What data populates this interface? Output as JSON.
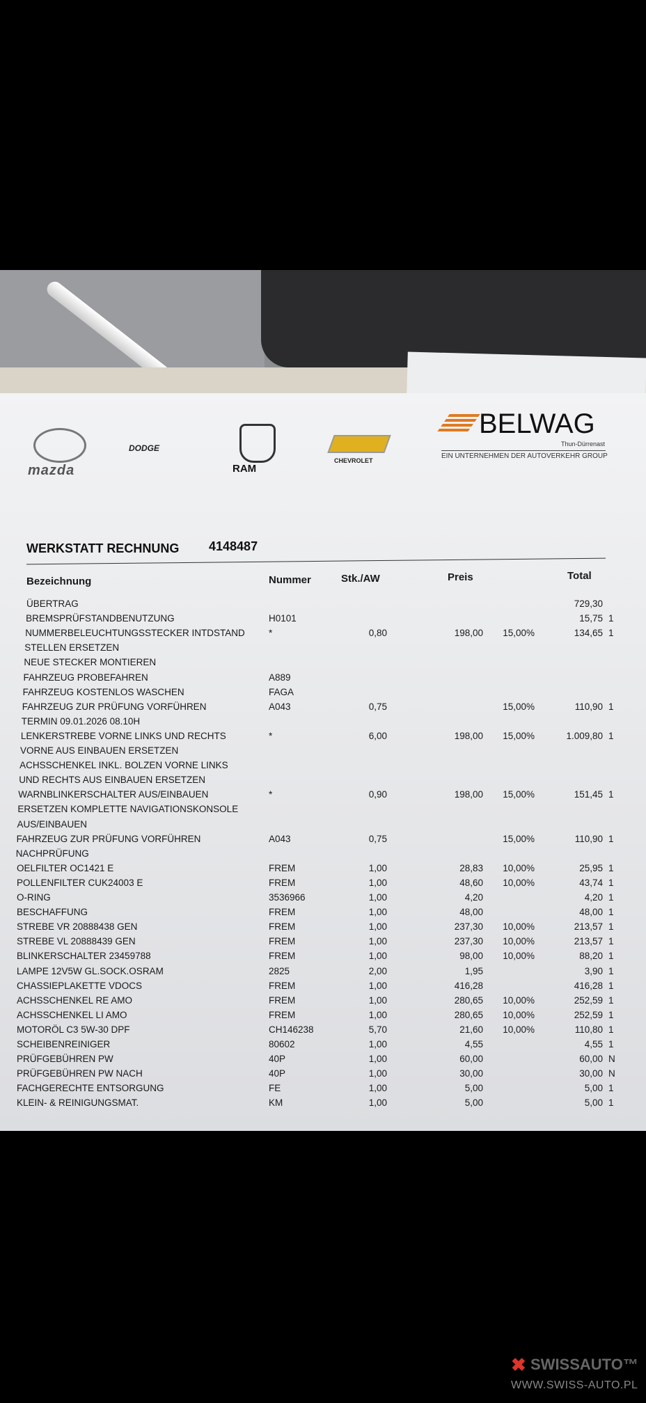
{
  "header": {
    "brands": [
      "mazda",
      "DODGE",
      "RAM",
      "CHEVROLET"
    ],
    "company": "BELWAG",
    "location": "Thun-Dürrenast",
    "tagline": "EIN UNTERNEHMEN DER AUTOVERKEHR GROUP"
  },
  "invoice": {
    "title": "WERKSTATT RECHNUNG",
    "number": "4148487"
  },
  "table": {
    "columns": [
      "Bezeichnung",
      "Nummer",
      "Stk./AW",
      "Preis",
      "Total"
    ],
    "rows": [
      {
        "text": "ÜBERTRAG",
        "total": "729,30"
      },
      {
        "text": "BREMSPRÜFSTANDBENUTZUNG",
        "number": "H0101",
        "total": "15,75",
        "code": "1"
      },
      {
        "text": "NUMMERBELEUCHTUNGSSTECKER INTDSTAND",
        "number": "*",
        "qty": "0,80",
        "price": "198,00",
        "discount": "15,00%",
        "total": "134,65",
        "code": "1"
      },
      {
        "text": "STELLEN ERSETZEN"
      },
      {
        "text": "NEUE STECKER MONTIEREN"
      },
      {
        "text": "FAHRZEUG PROBEFAHREN",
        "number": "A889"
      },
      {
        "text": "FAHRZEUG KOSTENLOS WASCHEN",
        "number": "FAGA"
      },
      {
        "text": "FAHRZEUG ZUR PRÜFUNG VORFÜHREN",
        "number": "A043",
        "qty": "0,75",
        "discount": "15,00%",
        "total": "110,90",
        "code": "1"
      },
      {
        "text": "TERMIN 09.01.2026 08.10H"
      },
      {
        "text": "LENKERSTREBE VORNE LINKS UND RECHTS",
        "number": "*",
        "qty": "6,00",
        "price": "198,00",
        "discount": "15,00%",
        "total": "1.009,80",
        "code": "1"
      },
      {
        "text": "VORNE AUS EINBAUEN ERSETZEN"
      },
      {
        "text": "ACHSSCHENKEL INKL. BOLZEN VORNE LINKS"
      },
      {
        "text": "UND RECHTS AUS EINBAUEN ERSETZEN"
      },
      {
        "text": "WARNBLINKERSCHALTER AUS/EINBAUEN",
        "number": "*",
        "qty": "0,90",
        "price": "198,00",
        "discount": "15,00%",
        "total": "151,45",
        "code": "1"
      },
      {
        "text": "ERSETZEN KOMPLETTE NAVIGATIONSKONSOLE"
      },
      {
        "text": "AUS/EINBAUEN"
      },
      {
        "text": "FAHRZEUG ZUR PRÜFUNG VORFÜHREN",
        "number": "A043",
        "qty": "0,75",
        "discount": "15,00%",
        "total": "110,90",
        "code": "1"
      },
      {
        "text": "NACHPRÜFUNG"
      },
      {
        "text": "OELFILTER OC1421 E",
        "number": "FREM",
        "qty": "1,00",
        "price": "28,83",
        "discount": "10,00%",
        "total": "25,95",
        "code": "1"
      },
      {
        "text": "POLLENFILTER CUK24003 E",
        "number": "FREM",
        "qty": "1,00",
        "price": "48,60",
        "discount": "10,00%",
        "total": "43,74",
        "code": "1"
      },
      {
        "text": "O-RING",
        "number": "3536966",
        "qty": "1,00",
        "price": "4,20",
        "total": "4,20",
        "code": "1"
      },
      {
        "text": "BESCHAFFUNG",
        "number": "FREM",
        "qty": "1,00",
        "price": "48,00",
        "total": "48,00",
        "code": "1"
      },
      {
        "text": "STREBE VR 20888438 GEN",
        "number": "FREM",
        "qty": "1,00",
        "price": "237,30",
        "discount": "10,00%",
        "total": "213,57",
        "code": "1"
      },
      {
        "text": "STREBE VL 20888439 GEN",
        "number": "FREM",
        "qty": "1,00",
        "price": "237,30",
        "discount": "10,00%",
        "total": "213,57",
        "code": "1"
      },
      {
        "text": "BLINKERSCHALTER 23459788",
        "number": "FREM",
        "qty": "1,00",
        "price": "98,00",
        "discount": "10,00%",
        "total": "88,20",
        "code": "1"
      },
      {
        "text": "LAMPE 12V5W GL.SOCK.OSRAM",
        "number": "2825",
        "qty": "2,00",
        "price": "1,95",
        "total": "3,90",
        "code": "1"
      },
      {
        "text": "CHASSIEPLAKETTE VDOCS",
        "number": "FREM",
        "qty": "1,00",
        "price": "416,28",
        "total": "416,28",
        "code": "1"
      },
      {
        "text": "ACHSSCHENKEL RE AMO",
        "number": "FREM",
        "qty": "1,00",
        "price": "280,65",
        "discount": "10,00%",
        "total": "252,59",
        "code": "1"
      },
      {
        "text": "ACHSSCHENKEL LI AMO",
        "number": "FREM",
        "qty": "1,00",
        "price": "280,65",
        "discount": "10,00%",
        "total": "252,59",
        "code": "1"
      },
      {
        "text": "MOTORÖL C3 5W-30 DPF",
        "number": "CH146238",
        "qty": "5,70",
        "price": "21,60",
        "discount": "10,00%",
        "total": "110,80",
        "code": "1"
      },
      {
        "text": "SCHEIBENREINIGER",
        "number": "80602",
        "qty": "1,00",
        "price": "4,55",
        "total": "4,55",
        "code": "1"
      },
      {
        "text": "PRÜFGEBÜHREN PW",
        "number": "40P",
        "qty": "1,00",
        "price": "60,00",
        "total": "60,00",
        "code": "N"
      },
      {
        "text": "PRÜFGEBÜHREN PW NACH",
        "number": "40P",
        "qty": "1,00",
        "price": "30,00",
        "total": "30,00",
        "code": "N"
      },
      {
        "text": "FACHGERECHTE ENTSORGUNG",
        "number": "FE",
        "qty": "1,00",
        "price": "5,00",
        "total": "5,00",
        "code": "1"
      },
      {
        "text": "KLEIN- & REINIGUNGSMAT.",
        "number": "KM",
        "qty": "1,00",
        "price": "5,00",
        "total": "5,00",
        "code": "1"
      }
    ]
  },
  "watermark": {
    "brand": "SWISSAUTO™",
    "url": "WWW.SWISS-AUTO.PL"
  }
}
